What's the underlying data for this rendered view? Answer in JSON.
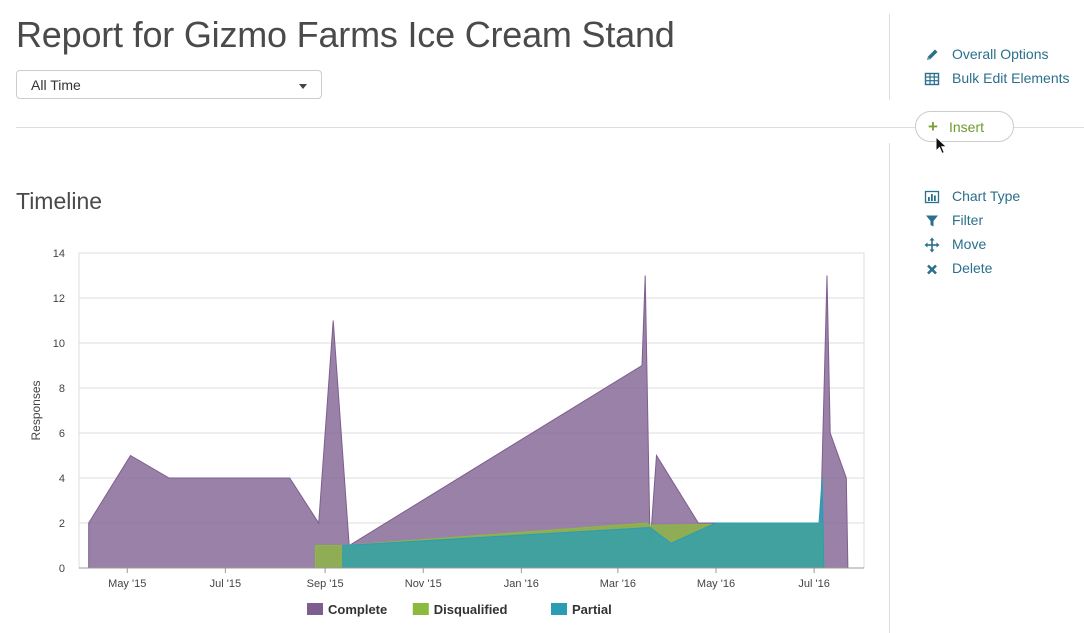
{
  "page": {
    "title": "Report for Gizmo Farms Ice Cream Stand"
  },
  "filter": {
    "selected": "All Time"
  },
  "sidebar": {
    "top": [
      {
        "label": "Overall Options",
        "icon": "pencil-icon"
      },
      {
        "label": "Bulk Edit Elements",
        "icon": "table-icon"
      }
    ],
    "insert_label": "Insert",
    "element": [
      {
        "label": "Chart Type",
        "icon": "bar-chart-icon"
      },
      {
        "label": "Filter",
        "icon": "funnel-icon"
      },
      {
        "label": "Move",
        "icon": "move-arrows-icon"
      },
      {
        "label": "Delete",
        "icon": "x-icon"
      }
    ]
  },
  "section": {
    "title": "Timeline"
  },
  "colors": {
    "complete": "#7e5e8f",
    "disqualified": "#8cba3e",
    "partial": "#2a9db5",
    "link": "#2b6f8c",
    "insert": "#6f9a2b"
  },
  "chart_data": {
    "type": "area",
    "title": "",
    "xlabel": "",
    "ylabel": "Responses",
    "ylim": [
      0,
      14
    ],
    "yticks": [
      0,
      2,
      4,
      6,
      8,
      10,
      12,
      14
    ],
    "xlim": [
      "2015-04-01",
      "2016-08-01"
    ],
    "xticks": [
      {
        "date": "2015-05-01",
        "label": "May '15"
      },
      {
        "date": "2015-07-01",
        "label": "Jul '15"
      },
      {
        "date": "2015-09-01",
        "label": "Sep '15"
      },
      {
        "date": "2015-11-01",
        "label": "Nov '15"
      },
      {
        "date": "2016-01-01",
        "label": "Jan '16"
      },
      {
        "date": "2016-03-01",
        "label": "Mar '16"
      },
      {
        "date": "2016-05-01",
        "label": "May '16"
      },
      {
        "date": "2016-07-01",
        "label": "Jul '16"
      }
    ],
    "grid": true,
    "legend": "bottom",
    "series": [
      {
        "name": "Complete",
        "color": "#7e5e8f",
        "points": [
          [
            "2015-04-07",
            2
          ],
          [
            "2015-05-03",
            5
          ],
          [
            "2015-05-27",
            4
          ],
          [
            "2015-08-10",
            4
          ],
          [
            "2015-08-28",
            2
          ],
          [
            "2015-09-06",
            11
          ],
          [
            "2015-09-16",
            1
          ],
          [
            "2016-03-16",
            9
          ],
          [
            "2016-03-18",
            13
          ],
          [
            "2016-03-21",
            1
          ],
          [
            "2016-03-25",
            5
          ],
          [
            "2016-04-20",
            2
          ],
          [
            "2016-07-05",
            2
          ],
          [
            "2016-07-09",
            13
          ],
          [
            "2016-07-11",
            6
          ],
          [
            "2016-07-21",
            4
          ],
          [
            "2016-07-22",
            0
          ]
        ]
      },
      {
        "name": "Disqualified",
        "color": "#8cba3e",
        "points": [
          [
            "2015-08-26",
            1
          ],
          [
            "2015-09-12",
            1
          ],
          [
            "2016-03-19",
            2
          ],
          [
            "2016-03-21",
            1.9
          ],
          [
            "2016-07-06",
            2
          ],
          [
            "2016-07-07",
            0
          ]
        ]
      },
      {
        "name": "Partial",
        "color": "#2a9db5",
        "points": [
          [
            "2015-09-12",
            1
          ],
          [
            "2016-03-21",
            1.8
          ],
          [
            "2016-04-03",
            1.1
          ],
          [
            "2016-05-01",
            2
          ],
          [
            "2016-07-04",
            2
          ],
          [
            "2016-07-06",
            4
          ],
          [
            "2016-07-07",
            0
          ]
        ]
      }
    ]
  }
}
